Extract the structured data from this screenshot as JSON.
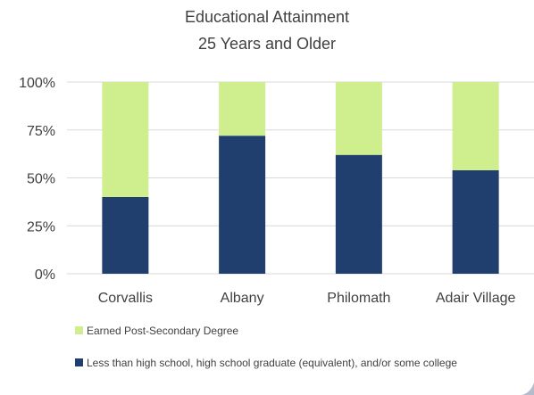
{
  "chart_data": {
    "type": "bar",
    "stacked": true,
    "title": "Educational Attainment",
    "subtitle": "25 Years and Older",
    "categories": [
      "Corvallis",
      "Albany",
      "Philomath",
      "Adair Village"
    ],
    "series": [
      {
        "name": "Less than high school, high school graduate (equivalent), and/or some college",
        "values": [
          40,
          72,
          62,
          54
        ],
        "color": "#213F6E"
      },
      {
        "name": "Earned Post-Secondary Degree",
        "values": [
          60,
          28,
          38,
          46
        ],
        "color": "#CFEE8E"
      }
    ],
    "y_ticks": [
      "0%",
      "25%",
      "50%",
      "75%",
      "100%"
    ],
    "ylim": [
      0,
      100
    ],
    "y_unit": "%",
    "grid": true,
    "gridline_color": "#D9D9D9",
    "xlabel": "",
    "ylabel": "",
    "legend_position": "bottom"
  }
}
